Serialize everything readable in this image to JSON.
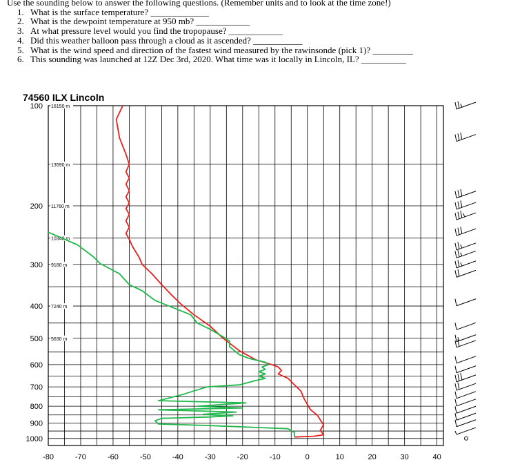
{
  "worksheet": {
    "intro": "Use the sounding below to answer the following questions. (Remember units and to look at the time zone!)",
    "questions": [
      "What is the surface temperature? _____________",
      "What is the dewpoint temperature at 950 mb? ____________",
      "At what pressure level would you find the tropopause? ____________",
      "Did this weather balloon pass through a cloud as it ascended? ___________",
      "What is the wind speed and direction of the fastest wind measured by the rawinsonde (pick 1)? _________",
      "This sounding was launched at 12Z Dec 3rd, 2020. What time was it locally in Lincoln, IL? __________"
    ]
  },
  "chart_data": {
    "type": "line",
    "title": "74560 ILX Lincoln",
    "xlabel": "",
    "ylabel": "",
    "grid": true,
    "pressure_ticks": [
      100,
      200,
      300,
      400,
      500,
      600,
      700,
      800,
      900,
      1000
    ],
    "temperature_ticks": [
      -80,
      -70,
      -60,
      -50,
      -40,
      -30,
      -20,
      -10,
      0,
      10,
      20,
      30,
      40
    ],
    "xlim": [
      -80,
      42
    ],
    "ylim": [
      1050,
      100
    ],
    "height_labels": [
      {
        "p": 100,
        "text": "16150 m"
      },
      {
        "p": 150,
        "text": "13590 m"
      },
      {
        "p": 200,
        "text": "11760 m"
      },
      {
        "p": 250,
        "text": "10340 m"
      },
      {
        "p": 300,
        "text": "9180 m"
      },
      {
        "p": 400,
        "text": "7240 m"
      },
      {
        "p": 500,
        "text": "5630 m"
      }
    ],
    "series": [
      {
        "color": "#e8201c",
        "points": [
          [
            -57,
            100
          ],
          [
            -59,
            110
          ],
          [
            -58,
            125
          ],
          [
            -56,
            140
          ],
          [
            -55,
            150
          ],
          [
            -56,
            158
          ],
          [
            -55,
            165
          ],
          [
            -56,
            172
          ],
          [
            -55,
            180
          ],
          [
            -56,
            188
          ],
          [
            -55,
            196
          ],
          [
            -56,
            204
          ],
          [
            -55,
            212
          ],
          [
            -56,
            222
          ],
          [
            -55,
            232
          ],
          [
            -56,
            242
          ],
          [
            -55,
            252
          ],
          [
            -54,
            265
          ],
          [
            -52,
            285
          ],
          [
            -51,
            300
          ],
          [
            -48,
            320
          ],
          [
            -45,
            345
          ],
          [
            -42,
            370
          ],
          [
            -39,
            395
          ],
          [
            -35,
            425
          ],
          [
            -30,
            460
          ],
          [
            -26,
            500
          ],
          [
            -21,
            545
          ],
          [
            -16,
            580
          ],
          [
            -11,
            600
          ],
          [
            -9,
            610
          ],
          [
            -8,
            625
          ],
          [
            -9,
            640
          ],
          [
            -6,
            660
          ],
          [
            -4,
            690
          ],
          [
            -2,
            720
          ],
          [
            -1,
            760
          ],
          [
            0,
            790
          ],
          [
            1,
            820
          ],
          [
            3,
            850
          ],
          [
            4,
            880
          ],
          [
            5,
            910
          ],
          [
            4,
            945
          ],
          [
            5,
            975
          ],
          [
            2,
            985
          ],
          [
            -4,
            990
          ]
        ]
      },
      {
        "color": "#20b84c",
        "points": [
          [
            -80,
            240
          ],
          [
            -71,
            262
          ],
          [
            -66,
            285
          ],
          [
            -64,
            298
          ],
          [
            -58,
            320
          ],
          [
            -55,
            345
          ],
          [
            -51,
            360
          ],
          [
            -47,
            385
          ],
          [
            -40,
            410
          ],
          [
            -36,
            425
          ],
          [
            -34,
            450
          ],
          [
            -30,
            470
          ],
          [
            -26,
            495
          ],
          [
            -24,
            510
          ],
          [
            -24,
            530
          ],
          [
            -21,
            560
          ],
          [
            -18,
            575
          ],
          [
            -13,
            590
          ],
          [
            -12,
            600
          ],
          [
            -14,
            610
          ],
          [
            -13,
            620
          ],
          [
            -15,
            630
          ],
          [
            -13,
            640
          ],
          [
            -15,
            650
          ],
          [
            -13,
            660
          ],
          [
            -16,
            670
          ],
          [
            -21,
            690
          ],
          [
            -31,
            700
          ],
          [
            -39,
            740
          ],
          [
            -46,
            770
          ],
          [
            -19,
            782
          ],
          [
            -34,
            800
          ],
          [
            -20,
            810
          ],
          [
            -46,
            820
          ],
          [
            -22,
            833
          ],
          [
            -32,
            846
          ],
          [
            -29,
            850
          ],
          [
            -23,
            855
          ],
          [
            -30,
            862
          ],
          [
            -45,
            870
          ],
          [
            -47,
            885
          ],
          [
            -46,
            905
          ],
          [
            -30,
            915
          ],
          [
            -6,
            935
          ],
          [
            -4,
            960
          ],
          [
            -4,
            985
          ],
          [
            -4,
            990
          ]
        ]
      }
    ],
    "wind_barbs": [
      {
        "p": 100,
        "barbs": 2.5
      },
      {
        "p": 125,
        "barbs": 3
      },
      {
        "p": 185,
        "barbs": 3
      },
      {
        "p": 200,
        "barbs": 3
      },
      {
        "p": 215,
        "barbs": 3.5
      },
      {
        "p": 240,
        "barbs": 3
      },
      {
        "p": 265,
        "barbs": 2.5
      },
      {
        "p": 280,
        "barbs": 2.5
      },
      {
        "p": 300,
        "barbs": 2.5
      },
      {
        "p": 320,
        "barbs": 2
      },
      {
        "p": 390,
        "barbs": 1
      },
      {
        "p": 460,
        "barbs": 1
      },
      {
        "p": 500,
        "barbs": 1.5
      },
      {
        "p": 520,
        "barbs": 2
      },
      {
        "p": 580,
        "barbs": 1
      },
      {
        "p": 620,
        "barbs": 1
      },
      {
        "p": 660,
        "barbs": 3
      },
      {
        "p": 700,
        "barbs": 2
      },
      {
        "p": 740,
        "barbs": 1
      },
      {
        "p": 780,
        "barbs": 1
      },
      {
        "p": 820,
        "barbs": 1
      },
      {
        "p": 860,
        "barbs": 1
      },
      {
        "p": 900,
        "barbs": 1
      },
      {
        "p": 950,
        "barbs": 0.5
      },
      {
        "p": 1000,
        "calm": true
      }
    ]
  }
}
